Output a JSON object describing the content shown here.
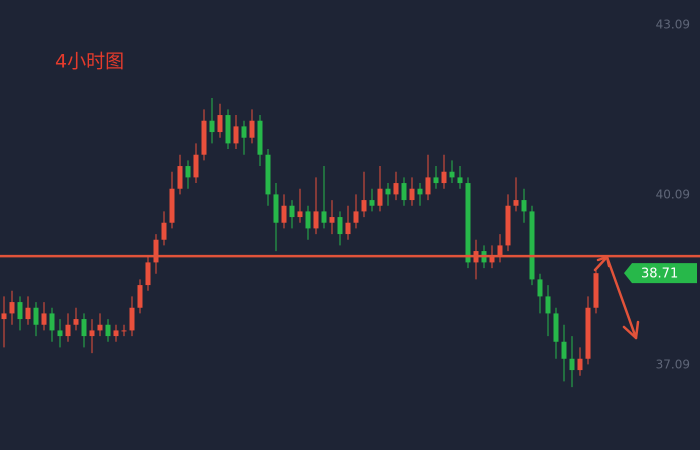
{
  "chart_data": {
    "type": "candlestick",
    "title": "4小时图",
    "ylim": [
      35.59,
      43.53
    ],
    "yticks": [
      37.09,
      40.09,
      43.09
    ],
    "up_color": "#e9503c",
    "down_color": "#27b84a",
    "line_color": "#e2533a",
    "hline": 39.01,
    "ohlc": [
      [
        37.9,
        38.3,
        37.4,
        38.0
      ],
      [
        38.0,
        38.4,
        37.8,
        38.2
      ],
      [
        38.2,
        38.3,
        37.7,
        37.9
      ],
      [
        37.9,
        38.3,
        37.8,
        38.1
      ],
      [
        38.1,
        38.2,
        37.6,
        37.8
      ],
      [
        37.8,
        38.2,
        37.7,
        38.0
      ],
      [
        38.0,
        38.1,
        37.5,
        37.7
      ],
      [
        37.7,
        37.9,
        37.4,
        37.6
      ],
      [
        37.6,
        38.0,
        37.5,
        37.8
      ],
      [
        37.8,
        38.1,
        37.7,
        37.9
      ],
      [
        37.9,
        38.0,
        37.4,
        37.6
      ],
      [
        37.6,
        37.9,
        37.3,
        37.7
      ],
      [
        37.7,
        38.0,
        37.6,
        37.8
      ],
      [
        37.8,
        37.9,
        37.5,
        37.6
      ],
      [
        37.6,
        37.8,
        37.5,
        37.7
      ],
      [
        37.7,
        37.8,
        37.6,
        37.7
      ],
      [
        37.7,
        38.3,
        37.6,
        38.1
      ],
      [
        38.1,
        38.6,
        38.0,
        38.5
      ],
      [
        38.5,
        39.0,
        38.4,
        38.9
      ],
      [
        38.9,
        39.4,
        38.7,
        39.3
      ],
      [
        39.3,
        39.8,
        39.2,
        39.6
      ],
      [
        39.6,
        40.5,
        39.5,
        40.2
      ],
      [
        40.2,
        40.8,
        40.1,
        40.6
      ],
      [
        40.6,
        40.7,
        40.2,
        40.4
      ],
      [
        40.4,
        41.0,
        40.3,
        40.8
      ],
      [
        40.8,
        41.6,
        40.7,
        41.4
      ],
      [
        41.4,
        41.8,
        41.0,
        41.2
      ],
      [
        41.2,
        41.7,
        41.1,
        41.5
      ],
      [
        41.5,
        41.6,
        40.9,
        41.0
      ],
      [
        41.0,
        41.5,
        40.9,
        41.3
      ],
      [
        41.3,
        41.4,
        40.8,
        41.1
      ],
      [
        41.1,
        41.6,
        41.0,
        41.4
      ],
      [
        41.4,
        41.5,
        40.6,
        40.8
      ],
      [
        40.8,
        40.9,
        39.9,
        40.1
      ],
      [
        40.1,
        40.3,
        39.1,
        39.6
      ],
      [
        39.6,
        40.1,
        39.5,
        39.9
      ],
      [
        39.9,
        40.0,
        39.5,
        39.7
      ],
      [
        39.7,
        40.2,
        39.6,
        39.8
      ],
      [
        39.8,
        39.9,
        39.3,
        39.5
      ],
      [
        39.5,
        40.4,
        39.4,
        39.8
      ],
      [
        39.8,
        40.6,
        39.5,
        39.6
      ],
      [
        39.6,
        40.0,
        39.4,
        39.7
      ],
      [
        39.7,
        39.8,
        39.2,
        39.4
      ],
      [
        39.4,
        39.9,
        39.3,
        39.6
      ],
      [
        39.6,
        40.1,
        39.5,
        39.8
      ],
      [
        39.8,
        40.5,
        39.7,
        40.0
      ],
      [
        40.0,
        40.2,
        39.8,
        39.9
      ],
      [
        39.9,
        40.6,
        39.8,
        40.2
      ],
      [
        40.2,
        40.3,
        39.9,
        40.1
      ],
      [
        40.1,
        40.5,
        40.0,
        40.3
      ],
      [
        40.3,
        40.4,
        39.9,
        40.0
      ],
      [
        40.0,
        40.4,
        39.9,
        40.2
      ],
      [
        40.2,
        40.3,
        39.9,
        40.1
      ],
      [
        40.1,
        40.8,
        40.0,
        40.4
      ],
      [
        40.4,
        40.6,
        40.2,
        40.3
      ],
      [
        40.3,
        40.8,
        40.2,
        40.5
      ],
      [
        40.5,
        40.7,
        40.3,
        40.4
      ],
      [
        40.4,
        40.6,
        40.2,
        40.3
      ],
      [
        40.3,
        40.4,
        38.8,
        38.9
      ],
      [
        38.9,
        39.3,
        38.6,
        39.1
      ],
      [
        39.1,
        39.2,
        38.8,
        38.9
      ],
      [
        38.9,
        39.2,
        38.8,
        39.0
      ],
      [
        39.0,
        39.4,
        38.9,
        39.2
      ],
      [
        39.2,
        40.1,
        39.1,
        39.9
      ],
      [
        39.9,
        40.4,
        39.8,
        40.0
      ],
      [
        40.0,
        40.2,
        39.6,
        39.8
      ],
      [
        39.8,
        39.9,
        38.5,
        38.6
      ],
      [
        38.6,
        38.7,
        38.0,
        38.3
      ],
      [
        38.3,
        38.5,
        37.6,
        38.0
      ],
      [
        38.0,
        38.1,
        37.2,
        37.5
      ],
      [
        37.5,
        37.8,
        36.8,
        37.2
      ],
      [
        37.2,
        37.6,
        36.7,
        37.0
      ],
      [
        37.0,
        37.4,
        36.9,
        37.2
      ],
      [
        37.2,
        38.3,
        37.1,
        38.1
      ],
      [
        38.1,
        38.8,
        38.0,
        38.71
      ]
    ]
  }
}
